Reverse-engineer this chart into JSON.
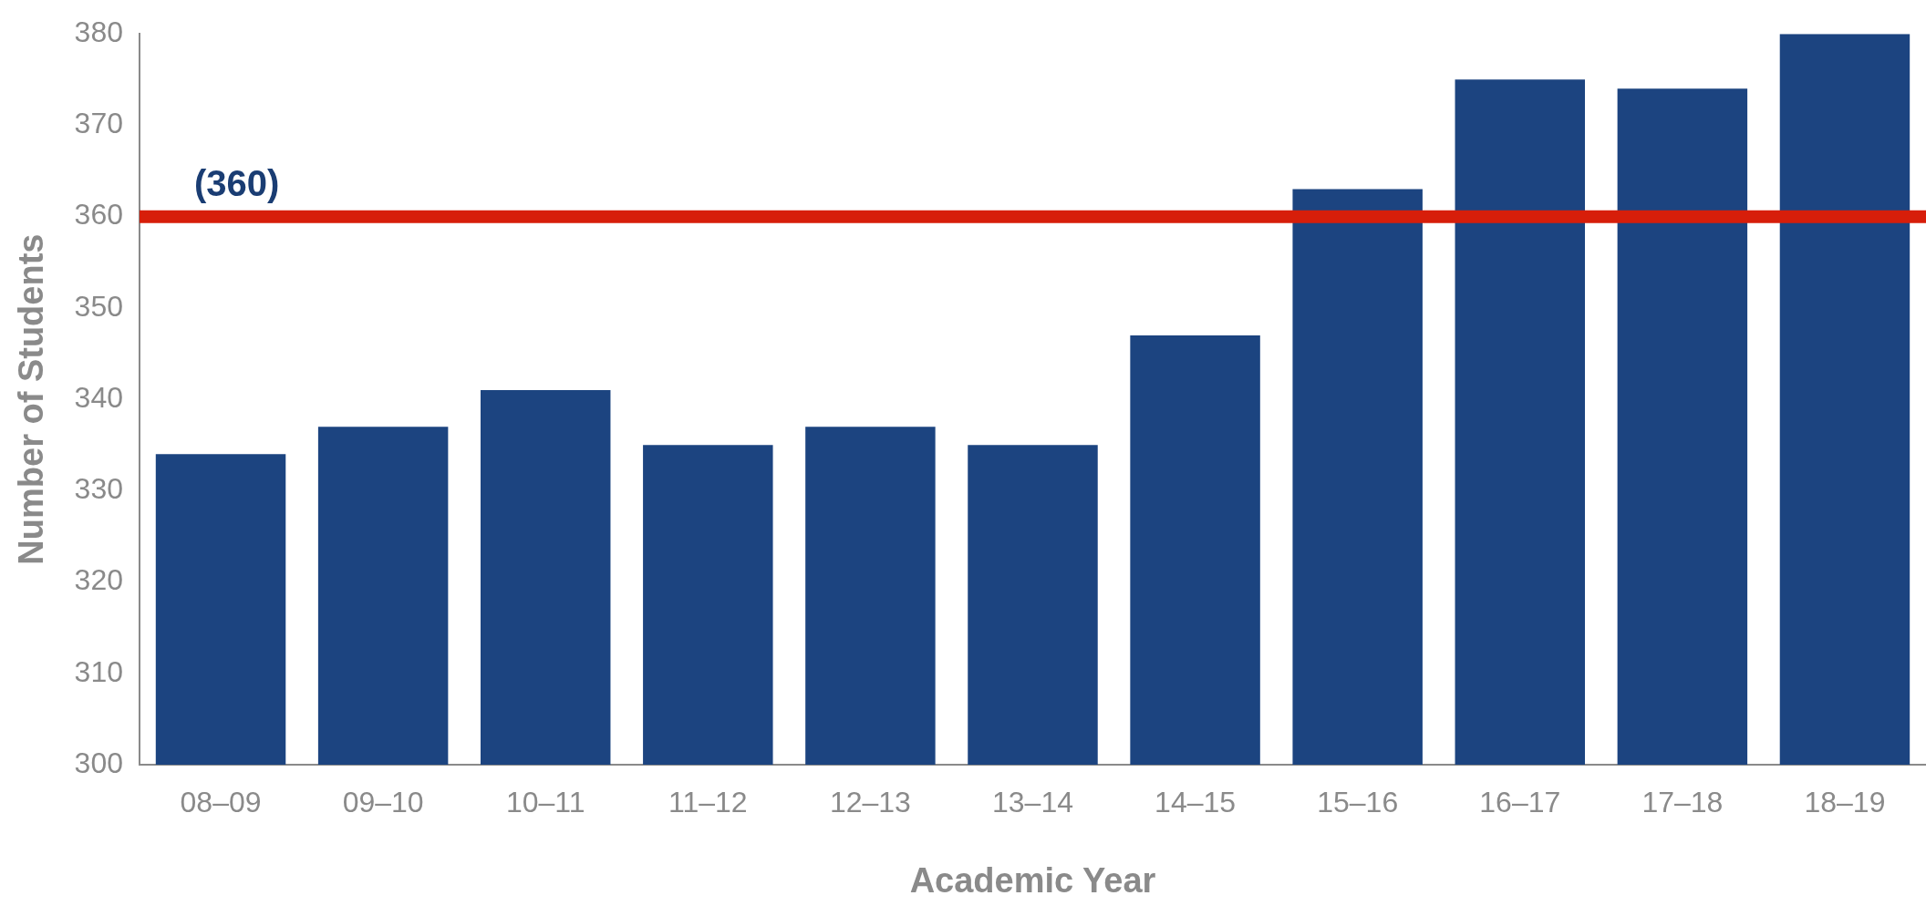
{
  "chart_data": {
    "type": "bar",
    "xlabel": "Academic Year",
    "ylabel": "Number of Students",
    "categories": [
      "08–09",
      "09–10",
      "10–11",
      "11–12",
      "12–13",
      "13–14",
      "14–15",
      "15–16",
      "16–17",
      "17–18",
      "18–19"
    ],
    "values": [
      334,
      337,
      341,
      335,
      337,
      335,
      347,
      363,
      375,
      374,
      380
    ],
    "color": "#1c4480",
    "ylim": [
      300,
      380
    ],
    "yticks": [
      300,
      310,
      320,
      330,
      340,
      350,
      360,
      370,
      380
    ],
    "grid": false,
    "legend": false,
    "ref_lines": [
      {
        "axis": "y",
        "value": 360,
        "label": "(360)",
        "color": "#d71e0a"
      }
    ]
  }
}
